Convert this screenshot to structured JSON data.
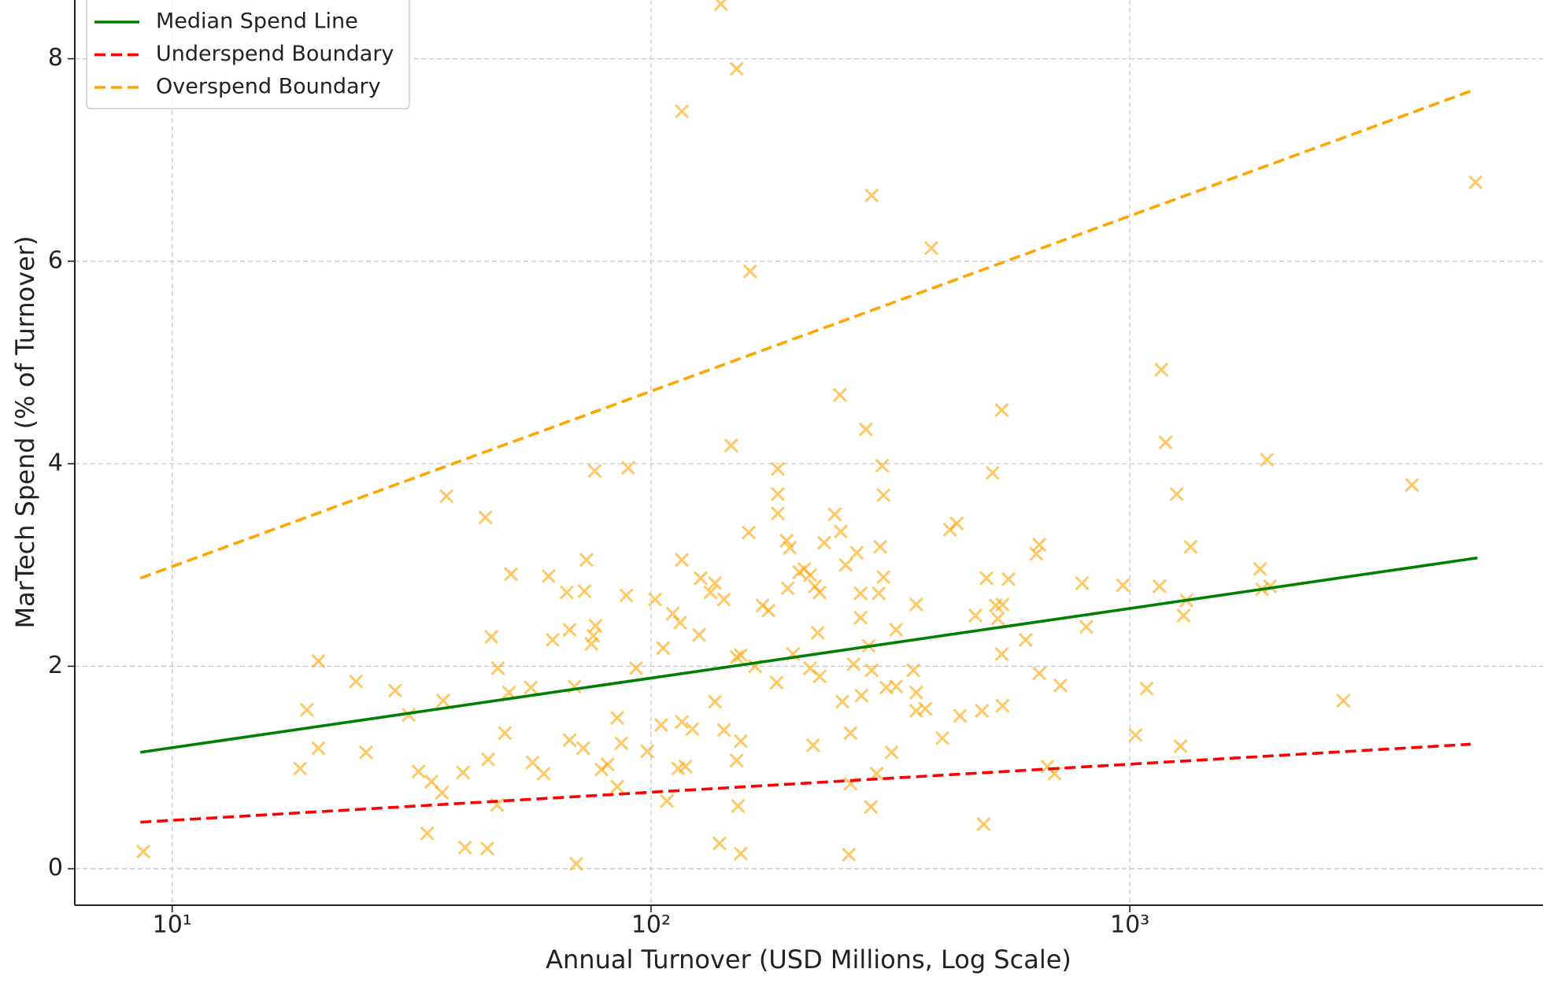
{
  "chart_data": {
    "type": "scatter",
    "xlabel": "Annual Turnover (USD Millions, Log Scale)",
    "ylabel": "MarTech Spend (% of Turnover)",
    "xscale": "log",
    "xlim": [
      6.26,
      7295
    ],
    "ylim": [
      -0.36,
      8.58
    ],
    "xticks": [
      {
        "value": 10,
        "label": "10¹"
      },
      {
        "value": 100,
        "label": "10²"
      },
      {
        "value": 1000,
        "label": "10³"
      }
    ],
    "yticks": [
      0,
      2,
      4,
      6,
      8
    ],
    "grid": true,
    "legend": "upper left",
    "series": [
      {
        "kind": "scatter",
        "marker": "x",
        "color": "#ffa500",
        "x": [
          8.7,
          18.5,
          19.1,
          20.2,
          20.2,
          24.2,
          25.4,
          29.2,
          31.2,
          32.7,
          34.1,
          34.8,
          36.6,
          36.8,
          37.4,
          40.5,
          40.9,
          45.1,
          45.5,
          45.7,
          46.4,
          47.7,
          47.9,
          49.5,
          50.5,
          51.0,
          56.1,
          56.6,
          59.7,
          61.1,
          62.3,
          66.7,
          67.6,
          67.6,
          69.2,
          69.8,
          72.2,
          72.6,
          73.3,
          75.1,
          75.8,
          76.6,
          76.3,
          78.8,
          81.1,
          85.0,
          85.0,
          86.7,
          88.8,
          89.6,
          93.1,
          98.2,
          102,
          105,
          106,
          108,
          111,
          114,
          115,
          116,
          116,
          116,
          118,
          122,
          126,
          127,
          133,
          136,
          136,
          139,
          140,
          142,
          142,
          147,
          151,
          151,
          151,
          152,
          154,
          154,
          154,
          160,
          161,
          165,
          171,
          176,
          183,
          184,
          184,
          184,
          192,
          193,
          195,
          198,
          204,
          209,
          215,
          215,
          218,
          220,
          223,
          225,
          225,
          230,
          242,
          248,
          249,
          251,
          255,
          259,
          261,
          261,
          265,
          269,
          274,
          274,
          275,
          281,
          285,
          288,
          289,
          289,
          296,
          299,
          301,
          304,
          306,
          306,
          310,
          318,
          325,
          325,
          353,
          358,
          358,
          358,
          374,
          385,
          406,
          421,
          435,
          442,
          476,
          491,
          495,
          502,
          517,
          525,
          530,
          540,
          540,
          542,
          542,
          558,
          606,
          638,
          647,
          647,
          673,
          696,
          716,
          795,
          811,
          967,
          1028,
          1084,
          1153,
          1164,
          1188,
          1253,
          1276,
          1295,
          1313,
          1340,
          1871,
          1888,
          1933,
          1963,
          2793,
          3883,
          5272
        ],
        "values": [
          0.17,
          0.99,
          1.57,
          2.05,
          1.19,
          1.85,
          1.15,
          1.76,
          1.52,
          0.96,
          0.35,
          0.86,
          0.75,
          1.66,
          3.68,
          0.95,
          0.21,
          3.47,
          0.2,
          1.08,
          2.29,
          0.63,
          1.98,
          1.34,
          1.74,
          2.91,
          1.79,
          1.05,
          0.94,
          2.89,
          2.26,
          2.73,
          2.36,
          1.27,
          1.8,
          0.05,
          1.19,
          2.74,
          3.05,
          2.22,
          2.3,
          2.4,
          3.93,
          0.98,
          1.03,
          0.81,
          1.49,
          1.24,
          2.7,
          3.96,
          1.98,
          1.16,
          2.66,
          1.42,
          2.18,
          0.67,
          2.52,
          0.99,
          2.43,
          7.48,
          1.45,
          3.05,
          1.01,
          1.38,
          2.31,
          2.87,
          2.73,
          1.65,
          2.82,
          0.25,
          8.54,
          2.66,
          1.37,
          4.18,
          2.09,
          1.07,
          7.9,
          0.62,
          0.15,
          1.26,
          2.11,
          3.32,
          5.9,
          2.0,
          2.6,
          2.55,
          1.84,
          3.51,
          3.7,
          3.95,
          3.24,
          2.77,
          3.17,
          2.12,
          2.93,
          2.96,
          2.9,
          1.98,
          1.22,
          2.79,
          2.33,
          1.9,
          2.73,
          3.22,
          3.5,
          4.68,
          3.33,
          1.65,
          3.0,
          0.14,
          0.84,
          1.34,
          2.02,
          3.12,
          2.72,
          2.48,
          1.71,
          4.34,
          2.2,
          0.61,
          6.65,
          1.96,
          0.94,
          2.72,
          3.18,
          3.98,
          3.69,
          2.88,
          1.79,
          1.15,
          2.36,
          1.8,
          1.96,
          1.56,
          2.61,
          1.74,
          1.58,
          6.13,
          1.29,
          3.35,
          3.41,
          1.51,
          2.5,
          1.56,
          0.44,
          2.87,
          3.91,
          2.6,
          2.47,
          4.53,
          2.12,
          1.61,
          2.61,
          2.86,
          2.26,
          3.11,
          3.2,
          1.93,
          1.01,
          0.94,
          1.81,
          2.82,
          2.39,
          2.8,
          1.32,
          1.78,
          2.79,
          4.93,
          4.21,
          3.7,
          1.21,
          2.5,
          2.65,
          3.18,
          2.96,
          2.76,
          4.04,
          2.79,
          1.66,
          3.79,
          6.78
        ]
      },
      {
        "kind": "line",
        "name": "Median Spend Line",
        "color": "#008000",
        "style": "solid",
        "x": [
          8.58,
          5320
        ],
        "values": [
          1.15,
          3.07
        ]
      },
      {
        "kind": "line",
        "name": "Underspend Boundary",
        "color": "#ff0000",
        "style": "dashed",
        "x": [
          8.58,
          5150
        ],
        "values": [
          0.46,
          1.23
        ]
      },
      {
        "kind": "line",
        "name": "Overspend Boundary",
        "color": "#ffa500",
        "style": "dashed",
        "x": [
          8.58,
          5150
        ],
        "values": [
          2.87,
          7.68
        ]
      }
    ]
  }
}
